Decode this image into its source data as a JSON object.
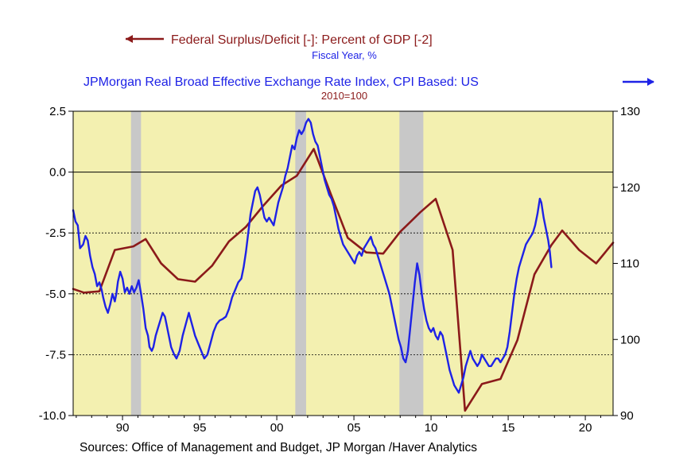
{
  "chart_data": {
    "type": "line",
    "legend": [
      {
        "label": "Federal Surplus/Deficit [-]: Percent of GDP [-2]",
        "sublabel": "Fiscal Year, %",
        "axis": "left",
        "color": "#8B1A1A",
        "marker": "left-arrow"
      },
      {
        "label": "JPMorgan Real Broad Effective Exchange Rate Index, CPI Based: US",
        "sublabel": "2010=100",
        "axis": "right",
        "color": "#1E22E6",
        "marker": "right-arrow"
      }
    ],
    "source": "Sources:  Office of Management and Budget, JP Morgan /Haver Analytics",
    "x_axis": {
      "range": [
        1986.8,
        2021.8
      ],
      "ticks": [
        {
          "v": 1990,
          "label": "90"
        },
        {
          "v": 1995,
          "label": "95"
        },
        {
          "v": 2000,
          "label": "00"
        },
        {
          "v": 2005,
          "label": "05"
        },
        {
          "v": 2010,
          "label": "10"
        },
        {
          "v": 2015,
          "label": "15"
        },
        {
          "v": 2020,
          "label": "20"
        }
      ]
    },
    "y_left": {
      "range": [
        -10.0,
        2.5
      ],
      "ticks": [
        {
          "v": 2.5,
          "label": "2.5"
        },
        {
          "v": 0,
          "label": "0.0"
        },
        {
          "v": -2.5,
          "label": "-2.5"
        },
        {
          "v": -5,
          "label": "-5.0"
        },
        {
          "v": -7.5,
          "label": "-7.5"
        },
        {
          "v": -10,
          "label": "-10.0"
        }
      ]
    },
    "y_right": {
      "range": [
        90,
        130
      ],
      "ticks": [
        {
          "v": 130,
          "label": "130"
        },
        {
          "v": 120,
          "label": "120"
        },
        {
          "v": 110,
          "label": "110"
        },
        {
          "v": 100,
          "label": "100"
        },
        {
          "v": 90,
          "label": "90"
        }
      ]
    },
    "reference_lines_left": [
      0,
      -2.5,
      -5,
      -7.5
    ],
    "recessions": [
      [
        1990.55,
        1991.2
      ],
      [
        2001.2,
        2001.9
      ],
      [
        2007.95,
        2009.5
      ]
    ],
    "colors": {
      "plot_bg": "#F3F0B0",
      "recession": "#C8C8C8",
      "deficit": "#8B1A1A",
      "fx": "#1E22E6",
      "title": "#8B1A1A",
      "fx_title": "#1E22E6"
    },
    "series": [
      {
        "name": "Federal Surplus/Deficit [-]: Percent of GDP [-2]",
        "axis": "left",
        "points": [
          [
            1986.8,
            -4.8
          ],
          [
            1987.5,
            -4.95
          ],
          [
            1988.5,
            -4.9
          ],
          [
            1989.5,
            -3.2
          ],
          [
            1990.7,
            -3.05
          ],
          [
            1991.5,
            -2.75
          ],
          [
            1992.5,
            -3.75
          ],
          [
            1993.6,
            -4.4
          ],
          [
            1994.7,
            -4.5
          ],
          [
            1995.8,
            -3.85
          ],
          [
            1996.9,
            -2.85
          ],
          [
            1998.0,
            -2.25
          ],
          [
            1999.1,
            -1.4
          ],
          [
            2000.3,
            -0.55
          ],
          [
            2001.3,
            -0.15
          ],
          [
            2002.4,
            0.95
          ],
          [
            2003.5,
            -0.9
          ],
          [
            2004.6,
            -2.7
          ],
          [
            2005.8,
            -3.3
          ],
          [
            2006.9,
            -3.35
          ],
          [
            2008.0,
            -2.45
          ],
          [
            2009.3,
            -1.65
          ],
          [
            2010.3,
            -1.1
          ],
          [
            2011.4,
            -3.2
          ],
          [
            2012.2,
            -9.8
          ],
          [
            2013.3,
            -8.7
          ],
          [
            2014.5,
            -8.5
          ],
          [
            2015.6,
            -6.9
          ],
          [
            2016.7,
            -4.2
          ],
          [
            2017.8,
            -3.0
          ],
          [
            2018.5,
            -2.4
          ],
          [
            2019.6,
            -3.2
          ],
          [
            2020.7,
            -3.75
          ],
          [
            2022.0,
            -2.9
          ]
        ]
      },
      {
        "name": "JPMorgan Real Broad Effective Exchange Rate Index, CPI Based: US",
        "axis": "right",
        "points": [
          [
            1986.8,
            117.0
          ],
          [
            1986.95,
            115.5
          ],
          [
            1987.1,
            115.0
          ],
          [
            1987.25,
            112.0
          ],
          [
            1987.45,
            112.5
          ],
          [
            1987.6,
            113.6
          ],
          [
            1987.75,
            113.0
          ],
          [
            1987.9,
            111.0
          ],
          [
            1988.05,
            109.5
          ],
          [
            1988.2,
            108.6
          ],
          [
            1988.35,
            107.0
          ],
          [
            1988.5,
            107.5
          ],
          [
            1988.65,
            106.5
          ],
          [
            1988.75,
            105.5
          ],
          [
            1988.9,
            104.3
          ],
          [
            1989.05,
            103.5
          ],
          [
            1989.2,
            104.6
          ],
          [
            1989.35,
            106.0
          ],
          [
            1989.5,
            105.0
          ],
          [
            1989.6,
            106.0
          ],
          [
            1989.7,
            107.6
          ],
          [
            1989.85,
            108.9
          ],
          [
            1990.0,
            108.0
          ],
          [
            1990.15,
            106.2
          ],
          [
            1990.3,
            106.8
          ],
          [
            1990.45,
            106.0
          ],
          [
            1990.6,
            107.0
          ],
          [
            1990.75,
            106.2
          ],
          [
            1990.9,
            106.8
          ],
          [
            1991.05,
            107.8
          ],
          [
            1991.2,
            106.0
          ],
          [
            1991.35,
            104.0
          ],
          [
            1991.5,
            101.5
          ],
          [
            1991.65,
            100.5
          ],
          [
            1991.75,
            99.0
          ],
          [
            1991.9,
            98.5
          ],
          [
            1992.0,
            99.0
          ],
          [
            1992.15,
            100.5
          ],
          [
            1992.3,
            101.5
          ],
          [
            1992.45,
            102.5
          ],
          [
            1992.6,
            103.5
          ],
          [
            1992.75,
            103.0
          ],
          [
            1992.85,
            102.0
          ],
          [
            1993.0,
            100.5
          ],
          [
            1993.15,
            99.0
          ],
          [
            1993.35,
            98.0
          ],
          [
            1993.5,
            97.5
          ],
          [
            1993.7,
            98.5
          ],
          [
            1993.9,
            100.5
          ],
          [
            1994.1,
            102.0
          ],
          [
            1994.3,
            103.5
          ],
          [
            1994.5,
            102.0
          ],
          [
            1994.7,
            100.5
          ],
          [
            1994.9,
            99.5
          ],
          [
            1995.1,
            98.5
          ],
          [
            1995.3,
            97.5
          ],
          [
            1995.5,
            98.0
          ],
          [
            1995.7,
            99.5
          ],
          [
            1995.9,
            101.0
          ],
          [
            1996.1,
            102.0
          ],
          [
            1996.3,
            102.5
          ],
          [
            1996.5,
            102.7
          ],
          [
            1996.7,
            103.0
          ],
          [
            1996.9,
            104.0
          ],
          [
            1997.1,
            105.5
          ],
          [
            1997.3,
            106.5
          ],
          [
            1997.5,
            107.5
          ],
          [
            1997.7,
            108.0
          ],
          [
            1997.85,
            109.5
          ],
          [
            1998.0,
            111.5
          ],
          [
            1998.15,
            114.0
          ],
          [
            1998.3,
            116.5
          ],
          [
            1998.45,
            118.0
          ],
          [
            1998.6,
            119.5
          ],
          [
            1998.75,
            120.0
          ],
          [
            1998.9,
            119.0
          ],
          [
            1999.05,
            117.5
          ],
          [
            1999.2,
            116.0
          ],
          [
            1999.35,
            115.5
          ],
          [
            1999.5,
            116.0
          ],
          [
            1999.65,
            115.5
          ],
          [
            1999.8,
            115.0
          ],
          [
            1999.95,
            116.5
          ],
          [
            2000.1,
            118.0
          ],
          [
            2000.25,
            119.0
          ],
          [
            2000.4,
            120.0
          ],
          [
            2000.55,
            121.5
          ],
          [
            2000.7,
            122.5
          ],
          [
            2000.85,
            124.0
          ],
          [
            2001.0,
            125.5
          ],
          [
            2001.15,
            125.0
          ],
          [
            2001.3,
            126.5
          ],
          [
            2001.45,
            127.5
          ],
          [
            2001.6,
            127.0
          ],
          [
            2001.75,
            127.5
          ],
          [
            2001.9,
            128.5
          ],
          [
            2002.05,
            129.0
          ],
          [
            2002.2,
            128.5
          ],
          [
            2002.35,
            127.0
          ],
          [
            2002.5,
            126.0
          ],
          [
            2002.65,
            125.5
          ],
          [
            2002.8,
            124.0
          ],
          [
            2002.95,
            122.5
          ],
          [
            2003.1,
            121.0
          ],
          [
            2003.25,
            120.0
          ],
          [
            2003.4,
            119.0
          ],
          [
            2003.55,
            118.5
          ],
          [
            2003.7,
            117.5
          ],
          [
            2003.85,
            116.0
          ],
          [
            2004.0,
            114.5
          ],
          [
            2004.15,
            113.5
          ],
          [
            2004.3,
            112.5
          ],
          [
            2004.45,
            112.0
          ],
          [
            2004.6,
            111.5
          ],
          [
            2004.75,
            111.0
          ],
          [
            2004.9,
            110.5
          ],
          [
            2005.05,
            110.0
          ],
          [
            2005.2,
            111.0
          ],
          [
            2005.35,
            111.5
          ],
          [
            2005.5,
            111.0
          ],
          [
            2005.65,
            112.0
          ],
          [
            2005.8,
            112.5
          ],
          [
            2005.95,
            113.0
          ],
          [
            2006.1,
            113.5
          ],
          [
            2006.25,
            112.5
          ],
          [
            2006.4,
            112.0
          ],
          [
            2006.55,
            111.0
          ],
          [
            2006.7,
            110.0
          ],
          [
            2006.85,
            109.0
          ],
          [
            2007.0,
            108.0
          ],
          [
            2007.15,
            107.0
          ],
          [
            2007.3,
            106.0
          ],
          [
            2007.45,
            104.5
          ],
          [
            2007.6,
            103.0
          ],
          [
            2007.75,
            101.5
          ],
          [
            2007.9,
            100.0
          ],
          [
            2008.05,
            99.0
          ],
          [
            2008.2,
            97.5
          ],
          [
            2008.35,
            97.0
          ],
          [
            2008.5,
            98.5
          ],
          [
            2008.65,
            101.5
          ],
          [
            2008.8,
            104.5
          ],
          [
            2008.95,
            107.5
          ],
          [
            2009.1,
            110.0
          ],
          [
            2009.25,
            108.5
          ],
          [
            2009.4,
            106.0
          ],
          [
            2009.55,
            104.0
          ],
          [
            2009.7,
            102.5
          ],
          [
            2009.85,
            101.5
          ],
          [
            2010.0,
            101.0
          ],
          [
            2010.15,
            101.5
          ],
          [
            2010.3,
            100.5
          ],
          [
            2010.45,
            100.0
          ],
          [
            2010.6,
            101.0
          ],
          [
            2010.75,
            100.5
          ],
          [
            2010.9,
            99.0
          ],
          [
            2011.05,
            97.5
          ],
          [
            2011.2,
            96.0
          ],
          [
            2011.35,
            95.0
          ],
          [
            2011.5,
            94.0
          ],
          [
            2011.65,
            93.5
          ],
          [
            2011.8,
            93.0
          ],
          [
            2011.95,
            94.0
          ],
          [
            2012.1,
            95.0
          ],
          [
            2012.25,
            96.5
          ],
          [
            2012.4,
            97.5
          ],
          [
            2012.55,
            98.5
          ],
          [
            2012.7,
            97.5
          ],
          [
            2012.85,
            97.0
          ],
          [
            2013.0,
            96.5
          ],
          [
            2013.15,
            97.0
          ],
          [
            2013.3,
            98.0
          ],
          [
            2013.45,
            97.5
          ],
          [
            2013.6,
            97.0
          ],
          [
            2013.75,
            96.5
          ],
          [
            2013.9,
            96.5
          ],
          [
            2014.05,
            97.0
          ],
          [
            2014.2,
            97.5
          ],
          [
            2014.35,
            97.5
          ],
          [
            2014.5,
            97.0
          ],
          [
            2014.65,
            97.5
          ],
          [
            2014.8,
            98.0
          ],
          [
            2014.95,
            99.0
          ],
          [
            2015.1,
            101.0
          ],
          [
            2015.25,
            103.5
          ],
          [
            2015.4,
            106.0
          ],
          [
            2015.55,
            108.0
          ],
          [
            2015.7,
            109.5
          ],
          [
            2015.85,
            110.5
          ],
          [
            2016.0,
            111.5
          ],
          [
            2016.15,
            112.5
          ],
          [
            2016.3,
            113.0
          ],
          [
            2016.45,
            113.5
          ],
          [
            2016.6,
            114.0
          ],
          [
            2016.75,
            115.0
          ],
          [
            2016.9,
            116.5
          ],
          [
            2017.05,
            118.5
          ],
          [
            2017.15,
            118.0
          ],
          [
            2017.3,
            116.0
          ],
          [
            2017.45,
            114.5
          ],
          [
            2017.6,
            113.0
          ],
          [
            2017.7,
            111.5
          ],
          [
            2017.8,
            109.5
          ]
        ]
      }
    ]
  }
}
